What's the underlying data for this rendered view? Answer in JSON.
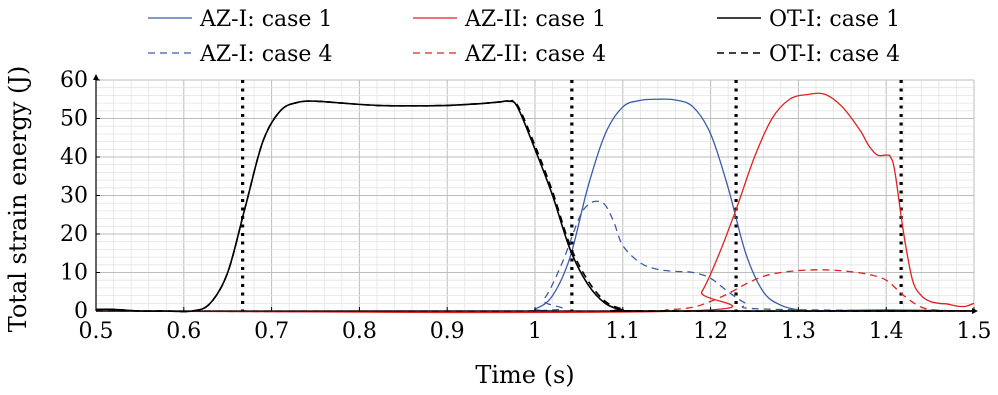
{
  "chart_data": {
    "type": "line",
    "xlabel": "Time (s)",
    "ylabel": "Total strain energy (J)",
    "xlim": [
      0.5,
      1.5
    ],
    "ylim": [
      0,
      60
    ],
    "xticks": [
      "0.5",
      "0.6",
      "0.7",
      "0.8",
      "0.9",
      "1",
      "1.1",
      "1.2",
      "1.3",
      "1.4",
      "1.5"
    ],
    "yticks": [
      "0",
      "10",
      "20",
      "30",
      "40",
      "50",
      "60"
    ],
    "grid": "major and minor",
    "legend_position": "top",
    "vertical_markers": {
      "style": "dotted",
      "color": "#000000",
      "x": [
        0.667,
        1.042,
        1.229,
        1.417
      ]
    },
    "series": [
      {
        "name": "AZ-I: case 1",
        "color": "#3b5ba9",
        "dash": "solid",
        "x": [
          0.5,
          0.98,
          1.0,
          1.02,
          1.04,
          1.06,
          1.08,
          1.1,
          1.12,
          1.14,
          1.16,
          1.18,
          1.2,
          1.22,
          1.24,
          1.26,
          1.28,
          1.3,
          1.32,
          1.4,
          1.5
        ],
        "y": [
          0,
          0,
          0.5,
          4,
          14,
          32,
          46,
          53,
          54.7,
          55,
          54.8,
          53,
          46,
          32,
          15,
          5,
          1.5,
          0.3,
          0,
          0.3,
          0
        ]
      },
      {
        "name": "AZ-I: case 4",
        "color": "#3b5ba9",
        "dash": "dashed",
        "x": [
          0.5,
          0.99,
          1.01,
          1.03,
          1.05,
          1.06,
          1.07,
          1.08,
          1.09,
          1.1,
          1.12,
          1.14,
          1.16,
          1.18,
          1.2,
          1.22,
          1.24,
          1.26,
          1.5
        ],
        "y": [
          0,
          0,
          3,
          12,
          24,
          27.5,
          28.5,
          27.5,
          23,
          17,
          12.5,
          10.8,
          10.3,
          10,
          8.5,
          5,
          2,
          0.5,
          0
        ]
      },
      {
        "name": "AZ-II: case 1",
        "color": "#e02020",
        "dash": "solid",
        "x": [
          0.5,
          1.17,
          1.19,
          1.21,
          1.23,
          1.25,
          1.27,
          1.29,
          1.31,
          1.33,
          1.35,
          1.37,
          1.38,
          1.39,
          1.4,
          1.405,
          1.41,
          1.42,
          1.43,
          1.44,
          1.45,
          1.46,
          1.47,
          1.48,
          1.49,
          1.5
        ],
        "y": [
          0,
          0,
          5,
          15,
          27,
          40,
          50,
          55,
          56.2,
          56.3,
          53,
          47,
          43,
          40.5,
          40.5,
          40,
          36,
          20,
          8,
          4,
          2.5,
          2,
          1.8,
          1.3,
          1.2,
          2
        ]
      },
      {
        "name": "AZ-II: case 4",
        "color": "#e02020",
        "dash": "dashed",
        "x": [
          0.5,
          1.1,
          1.15,
          1.18,
          1.2,
          1.22,
          1.24,
          1.26,
          1.28,
          1.3,
          1.32,
          1.34,
          1.36,
          1.38,
          1.4,
          1.42,
          1.44,
          1.46,
          1.5
        ],
        "y": [
          0,
          0,
          0.3,
          1,
          2.5,
          4.5,
          7,
          9,
          10,
          10.5,
          10.7,
          10.6,
          10.2,
          9.5,
          8,
          4,
          1,
          0.2,
          0
        ]
      },
      {
        "name": "OT-I: case 1",
        "color": "#000000",
        "dash": "solid",
        "x": [
          0.5,
          0.52,
          0.55,
          0.58,
          0.61,
          0.63,
          0.65,
          0.67,
          0.69,
          0.71,
          0.73,
          0.75,
          0.78,
          0.82,
          0.86,
          0.9,
          0.94,
          0.96,
          0.97,
          0.98,
          1.0,
          1.02,
          1.04,
          1.06,
          1.08,
          1.1,
          1.12,
          1.5
        ],
        "y": [
          0.4,
          0.4,
          0,
          0,
          0,
          2,
          10,
          27,
          44,
          52,
          54.2,
          54.5,
          54,
          53.4,
          53.3,
          53.4,
          53.9,
          54.3,
          54.5,
          53,
          42,
          30,
          16,
          7,
          2,
          0.3,
          0,
          0
        ]
      },
      {
        "name": "OT-I: case 4",
        "color": "#000000",
        "dash": "dashed",
        "x": [
          0.5,
          0.52,
          0.55,
          0.58,
          0.61,
          0.63,
          0.65,
          0.67,
          0.69,
          0.71,
          0.73,
          0.75,
          0.78,
          0.82,
          0.86,
          0.9,
          0.94,
          0.96,
          0.97,
          0.98,
          1.0,
          1.02,
          1.04,
          1.06,
          1.08,
          1.1,
          1.12,
          1.5
        ],
        "y": [
          0.4,
          0.4,
          0,
          0,
          0,
          2,
          10,
          27,
          44,
          52,
          54.2,
          54.5,
          54,
          53.4,
          53.3,
          53.4,
          53.9,
          54.3,
          54.5,
          53.5,
          43,
          31,
          17,
          8,
          2.5,
          0.5,
          0,
          0
        ]
      }
    ]
  }
}
